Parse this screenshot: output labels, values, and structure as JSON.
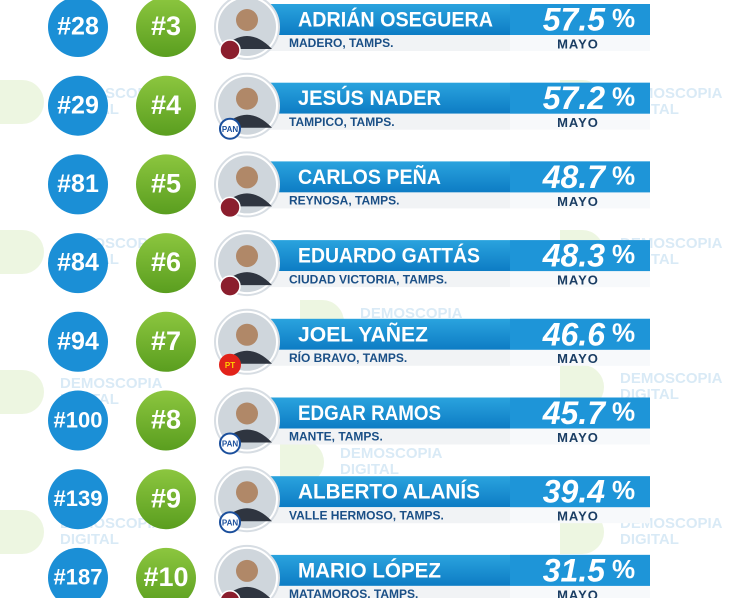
{
  "watermark": {
    "brand": "DEMOSCOPIA",
    "sub": "DIGITAL"
  },
  "rows": [
    {
      "national": "#28",
      "state": "#3",
      "name": "ADRIÁN OSEGUERA",
      "city": "MADERO, TAMPS.",
      "value": "57.5",
      "unit": "%",
      "month": "MAYO"
    },
    {
      "national": "#29",
      "state": "#4",
      "name": "JESÚS NADER",
      "city": "TAMPICO, TAMPS.",
      "value": "57.2",
      "unit": "%",
      "month": "MAYO",
      "party": "PAN"
    },
    {
      "national": "#81",
      "state": "#5",
      "name": "CARLOS PEÑA",
      "city": "REYNOSA, TAMPS.",
      "value": "48.7",
      "unit": "%",
      "month": "MAYO"
    },
    {
      "national": "#84",
      "state": "#6",
      "name": "EDUARDO GATTÁS",
      "city": "CIUDAD VICTORIA, TAMPS.",
      "value": "48.3",
      "unit": "%",
      "month": "MAYO"
    },
    {
      "national": "#94",
      "state": "#7",
      "name": "JOEL YAÑEZ",
      "city": "RÍO BRAVO, TAMPS.",
      "value": "46.6",
      "unit": "%",
      "month": "MAYO",
      "party": "PT"
    },
    {
      "national": "#100",
      "state": "#8",
      "name": "EDGAR RAMOS",
      "city": "MANTE, TAMPS.",
      "value": "45.7",
      "unit": "%",
      "month": "MAYO",
      "party": "PAN"
    },
    {
      "national": "#139",
      "state": "#9",
      "name": "ALBERTO ALANÍS",
      "city": "VALLE HERMOSO, TAMPS.",
      "value": "39.4",
      "unit": "%",
      "month": "MAYO",
      "party": "PAN"
    },
    {
      "national": "#187",
      "state": "#10",
      "name": "MARIO LÓPEZ",
      "city": "MATAMOROS, TAMPS.",
      "value": "31.5",
      "unit": "%",
      "month": "MAYO"
    }
  ]
}
